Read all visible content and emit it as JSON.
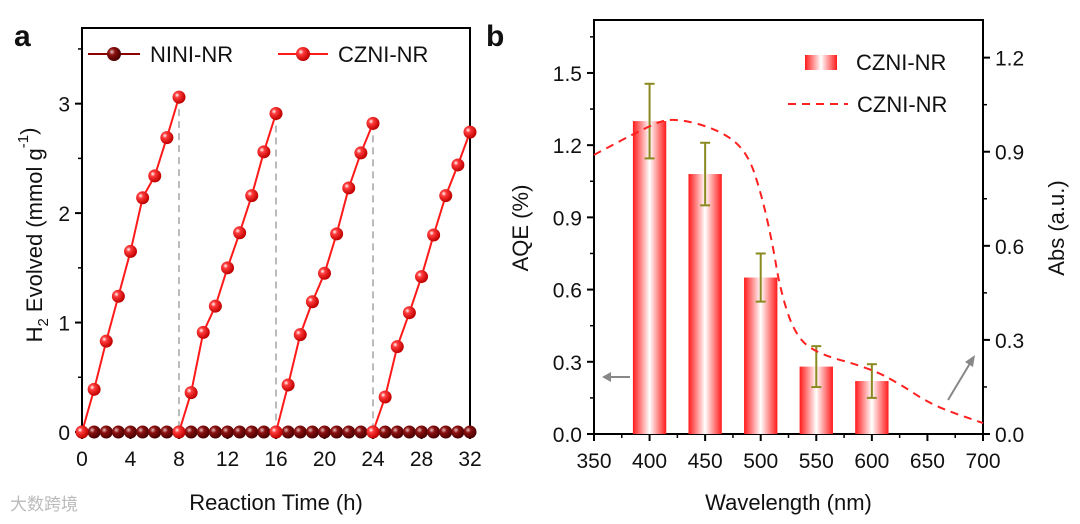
{
  "watermark": "大数跨境",
  "chart_data": [
    {
      "panel": "a",
      "type": "line",
      "xlabel": "Reaction Time (h)",
      "ylabel": "H2 Evolved (mmol g-1)",
      "ylabel_main": "H",
      "ylabel_sub": "2",
      "ylabel_rest": " Evolved (mmol g",
      "ylabel_sup": "-1",
      "ylabel_end": ")",
      "xlim": [
        0,
        32
      ],
      "ylim": [
        0,
        3.6
      ],
      "xticks": [
        0,
        4,
        8,
        12,
        16,
        20,
        24,
        28,
        32
      ],
      "yticks": [
        0,
        1,
        2,
        3
      ],
      "cycle_markers": [
        8,
        16,
        24
      ],
      "legend": [
        "NINI-NR",
        "CZNI-NR"
      ],
      "series": [
        {
          "name": "NINI-NR",
          "color": "#8b0000",
          "x": [
            0,
            1,
            2,
            3,
            4,
            5,
            6,
            7,
            8,
            9,
            10,
            11,
            12,
            13,
            14,
            15,
            16,
            17,
            18,
            19,
            20,
            21,
            22,
            23,
            24,
            25,
            26,
            27,
            28,
            29,
            30,
            31,
            32
          ],
          "y": [
            0,
            0,
            0,
            0,
            0,
            0,
            0,
            0,
            0,
            0,
            0,
            0,
            0,
            0,
            0,
            0,
            0,
            0,
            0,
            0,
            0,
            0,
            0,
            0,
            0,
            0,
            0,
            0,
            0,
            0,
            0,
            0,
            0
          ]
        },
        {
          "name": "CZNI-NR",
          "color": "#ff1a1a",
          "cycles": [
            {
              "x": [
                0,
                1,
                2,
                3,
                4,
                5,
                6,
                7,
                8
              ],
              "y": [
                0,
                0.39,
                0.83,
                1.24,
                1.65,
                2.14,
                2.34,
                2.69,
                3.06
              ]
            },
            {
              "x": [
                8,
                9,
                10,
                11,
                12,
                13,
                14,
                15,
                16
              ],
              "y": [
                0,
                0.36,
                0.91,
                1.15,
                1.5,
                1.82,
                2.16,
                2.56,
                2.91
              ]
            },
            {
              "x": [
                16,
                17,
                18,
                19,
                20,
                21,
                22,
                23,
                24
              ],
              "y": [
                0,
                0.43,
                0.89,
                1.19,
                1.45,
                1.81,
                2.23,
                2.55,
                2.82
              ]
            },
            {
              "x": [
                24,
                25,
                26,
                27,
                28,
                29,
                30,
                31,
                32
              ],
              "y": [
                0,
                0.32,
                0.78,
                1.09,
                1.42,
                1.8,
                2.16,
                2.44,
                2.74
              ]
            }
          ]
        }
      ]
    },
    {
      "panel": "b",
      "type": "bar",
      "xlabel": "Wavelength (nm)",
      "ylabel": "AQE (%)",
      "y2label": "Abs (a.u.)",
      "xlim": [
        350,
        700
      ],
      "ylim": [
        0,
        1.72
      ],
      "y2lim": [
        0,
        1.32
      ],
      "xticks": [
        350,
        400,
        450,
        500,
        550,
        600,
        650,
        700
      ],
      "yticks": [
        0.0,
        0.3,
        0.6,
        0.9,
        1.2,
        1.5
      ],
      "y2ticks": [
        0.0,
        0.3,
        0.6,
        0.9,
        1.2
      ],
      "ytick_labels": [
        "0.0",
        "0.3",
        "0.6",
        "0.9",
        "1.2",
        "1.5"
      ],
      "y2tick_labels": [
        "0.0",
        "0.3",
        "0.6",
        "0.9",
        "1.2"
      ],
      "legend": [
        "CZNI-NR",
        "CZNI-NR"
      ],
      "bars": {
        "categories": [
          400,
          450,
          500,
          550,
          600
        ],
        "values": [
          1.3,
          1.08,
          0.65,
          0.28,
          0.22
        ],
        "errors": [
          0.155,
          0.13,
          0.1,
          0.085,
          0.07
        ]
      },
      "absorbance": {
        "x": [
          350,
          398,
          421,
          463,
          488,
          501,
          511,
          517,
          529,
          547,
          598,
          625,
          655,
          700
        ],
        "y": [
          0.89,
          0.98,
          1.01,
          0.97,
          0.9,
          0.76,
          0.6,
          0.47,
          0.33,
          0.26,
          0.21,
          0.16,
          0.09,
          0.035
        ]
      },
      "colors": {
        "bar": "#ff2020",
        "error": "#8a8a20",
        "curve": "#ff2020",
        "arrow": "#888888"
      }
    }
  ]
}
